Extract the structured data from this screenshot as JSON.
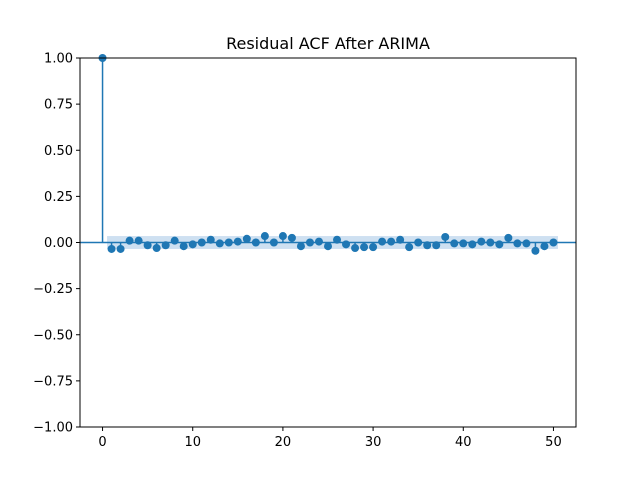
{
  "chart_data": {
    "type": "stem",
    "title": "Residual ACF After ARIMA",
    "xlabel": "",
    "ylabel": "",
    "xlim": [
      -2.5,
      52.5
    ],
    "ylim": [
      -1.0,
      1.0
    ],
    "xticks": [
      0,
      10,
      20,
      30,
      40,
      50
    ],
    "yticks": [
      -1.0,
      -0.75,
      -0.5,
      -0.25,
      0.0,
      0.25,
      0.5,
      0.75,
      1.0
    ],
    "xtick_labels": [
      "0",
      "10",
      "20",
      "30",
      "40",
      "50"
    ],
    "ytick_labels": [
      "−1.00",
      "−0.75",
      "−0.50",
      "−0.25",
      "0.00",
      "0.25",
      "0.50",
      "0.75",
      "1.00"
    ],
    "grid": false,
    "colors": {
      "series": "#1f77b4",
      "confidence_band": "#c6dbef"
    },
    "lags": [
      0,
      1,
      2,
      3,
      4,
      5,
      6,
      7,
      8,
      9,
      10,
      11,
      12,
      13,
      14,
      15,
      16,
      17,
      18,
      19,
      20,
      21,
      22,
      23,
      24,
      25,
      26,
      27,
      28,
      29,
      30,
      31,
      32,
      33,
      34,
      35,
      36,
      37,
      38,
      39,
      40,
      41,
      42,
      43,
      44,
      45,
      46,
      47,
      48,
      49,
      50
    ],
    "acf": [
      1.0,
      -0.035,
      -0.035,
      0.01,
      0.01,
      -0.015,
      -0.03,
      -0.015,
      0.01,
      -0.02,
      -0.01,
      0.0,
      0.015,
      -0.005,
      0.0,
      0.005,
      0.02,
      0.0,
      0.035,
      0.0,
      0.035,
      0.025,
      -0.02,
      0.0,
      0.005,
      -0.02,
      0.015,
      -0.01,
      -0.03,
      -0.025,
      -0.025,
      0.005,
      0.005,
      0.015,
      -0.025,
      0.0,
      -0.015,
      -0.015,
      0.03,
      -0.005,
      -0.005,
      -0.01,
      0.005,
      0.0,
      -0.01,
      0.025,
      -0.005,
      -0.005,
      -0.045,
      -0.02,
      0.0
    ],
    "confidence_band": {
      "lower": -0.035,
      "upper": 0.035,
      "x_start": 0.5,
      "x_end": 50.5
    }
  }
}
